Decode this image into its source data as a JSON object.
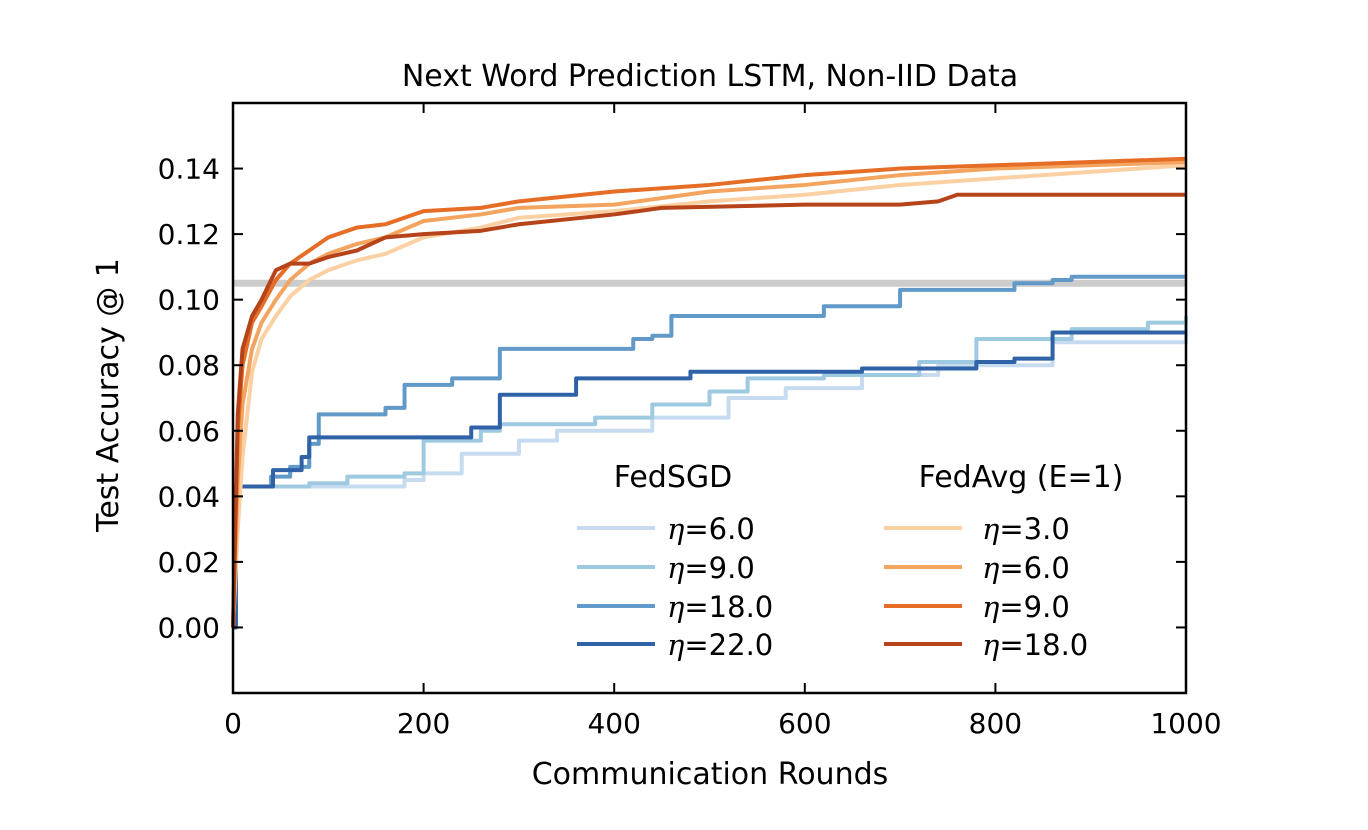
{
  "chart_data": {
    "type": "line",
    "title": "Next Word Prediction LSTM, Non-IID Data",
    "xlabel": "Communication Rounds",
    "ylabel": "Test Accuracy @ 1",
    "xlim": [
      0,
      1000
    ],
    "ylim": [
      -0.02,
      0.16
    ],
    "xticks": [
      0,
      200,
      400,
      600,
      800,
      1000
    ],
    "xtick_labels": [
      "0",
      "200",
      "400",
      "600",
      "800",
      "1000"
    ],
    "yticks": [
      0.0,
      0.02,
      0.04,
      0.06,
      0.08,
      0.1,
      0.12,
      0.14
    ],
    "ytick_labels": [
      "0.00",
      "0.02",
      "0.04",
      "0.06",
      "0.08",
      "0.10",
      "0.12",
      "0.14"
    ],
    "grid": false,
    "legend": {
      "placement": "lower-right",
      "groups": [
        {
          "heading": "FedSGD",
          "entries": [
            "=6.0",
            "=9.0",
            "=18.0",
            "=22.0"
          ]
        },
        {
          "heading": "FedAvg (E=1)",
          "entries": [
            "=3.0",
            "=6.0",
            "=9.0",
            "=18.0"
          ]
        }
      ],
      "symbol": "η"
    },
    "reference_line": {
      "y": 0.105,
      "color": "#cccccc"
    },
    "series": [
      {
        "name": "η=6.0",
        "group": "FedSGD",
        "color": "#c6dbef",
        "step": true,
        "points": [
          [
            0,
            0.0
          ],
          [
            3,
            0.043
          ],
          [
            60,
            0.043
          ],
          [
            180,
            0.045
          ],
          [
            200,
            0.047
          ],
          [
            240,
            0.053
          ],
          [
            300,
            0.057
          ],
          [
            340,
            0.06
          ],
          [
            440,
            0.064
          ],
          [
            520,
            0.07
          ],
          [
            580,
            0.073
          ],
          [
            660,
            0.077
          ],
          [
            740,
            0.08
          ],
          [
            860,
            0.087
          ],
          [
            1000,
            0.093
          ]
        ]
      },
      {
        "name": "η=9.0",
        "group": "FedSGD",
        "color": "#9ecae1",
        "step": true,
        "points": [
          [
            0,
            0.0
          ],
          [
            3,
            0.043
          ],
          [
            80,
            0.044
          ],
          [
            120,
            0.046
          ],
          [
            180,
            0.047
          ],
          [
            200,
            0.057
          ],
          [
            260,
            0.06
          ],
          [
            280,
            0.062
          ],
          [
            340,
            0.062
          ],
          [
            380,
            0.064
          ],
          [
            440,
            0.068
          ],
          [
            500,
            0.072
          ],
          [
            540,
            0.076
          ],
          [
            620,
            0.077
          ],
          [
            720,
            0.081
          ],
          [
            780,
            0.088
          ],
          [
            880,
            0.091
          ],
          [
            960,
            0.093
          ],
          [
            1000,
            0.095
          ]
        ]
      },
      {
        "name": "η=18.0",
        "group": "FedSGD",
        "color": "#6199c8",
        "step": true,
        "points": [
          [
            0,
            0.0
          ],
          [
            3,
            0.043
          ],
          [
            40,
            0.046
          ],
          [
            60,
            0.049
          ],
          [
            80,
            0.056
          ],
          [
            90,
            0.065
          ],
          [
            160,
            0.067
          ],
          [
            180,
            0.074
          ],
          [
            230,
            0.076
          ],
          [
            280,
            0.085
          ],
          [
            420,
            0.088
          ],
          [
            440,
            0.089
          ],
          [
            460,
            0.095
          ],
          [
            580,
            0.095
          ],
          [
            600,
            0.095
          ],
          [
            620,
            0.098
          ],
          [
            700,
            0.103
          ],
          [
            800,
            0.103
          ],
          [
            820,
            0.105
          ],
          [
            860,
            0.106
          ],
          [
            880,
            0.107
          ],
          [
            1000,
            0.107
          ]
        ]
      },
      {
        "name": "η=22.0",
        "group": "FedSGD",
        "color": "#2f62a6",
        "step": true,
        "points": [
          [
            0,
            0.0
          ],
          [
            3,
            0.043
          ],
          [
            40,
            0.043
          ],
          [
            42,
            0.048
          ],
          [
            70,
            0.048
          ],
          [
            72,
            0.052
          ],
          [
            80,
            0.058
          ],
          [
            240,
            0.058
          ],
          [
            250,
            0.061
          ],
          [
            280,
            0.071
          ],
          [
            340,
            0.071
          ],
          [
            360,
            0.076
          ],
          [
            460,
            0.076
          ],
          [
            480,
            0.078
          ],
          [
            560,
            0.078
          ],
          [
            640,
            0.078
          ],
          [
            660,
            0.079
          ],
          [
            760,
            0.079
          ],
          [
            780,
            0.081
          ],
          [
            820,
            0.082
          ],
          [
            840,
            0.082
          ],
          [
            860,
            0.09
          ],
          [
            1000,
            0.09
          ]
        ]
      },
      {
        "name": "η=3.0",
        "group": "FedAvg (E=1)",
        "color": "#fbd0a2",
        "step": false,
        "points": [
          [
            0,
            0.0
          ],
          [
            5,
            0.03
          ],
          [
            10,
            0.052
          ],
          [
            20,
            0.078
          ],
          [
            30,
            0.088
          ],
          [
            45,
            0.095
          ],
          [
            60,
            0.101
          ],
          [
            80,
            0.106
          ],
          [
            100,
            0.109
          ],
          [
            130,
            0.112
          ],
          [
            160,
            0.114
          ],
          [
            200,
            0.119
          ],
          [
            260,
            0.122
          ],
          [
            300,
            0.125
          ],
          [
            400,
            0.127
          ],
          [
            500,
            0.13
          ],
          [
            600,
            0.132
          ],
          [
            700,
            0.135
          ],
          [
            800,
            0.137
          ],
          [
            900,
            0.139
          ],
          [
            1000,
            0.141
          ]
        ]
      },
      {
        "name": "η=6.0",
        "group": "FedAvg (E=1)",
        "color": "#f3a560",
        "step": false,
        "points": [
          [
            0,
            0.0
          ],
          [
            5,
            0.045
          ],
          [
            10,
            0.068
          ],
          [
            20,
            0.085
          ],
          [
            30,
            0.093
          ],
          [
            45,
            0.1
          ],
          [
            60,
            0.106
          ],
          [
            80,
            0.111
          ],
          [
            100,
            0.114
          ],
          [
            130,
            0.117
          ],
          [
            160,
            0.119
          ],
          [
            200,
            0.124
          ],
          [
            260,
            0.126
          ],
          [
            300,
            0.128
          ],
          [
            400,
            0.129
          ],
          [
            500,
            0.133
          ],
          [
            600,
            0.135
          ],
          [
            700,
            0.138
          ],
          [
            800,
            0.14
          ],
          [
            900,
            0.141
          ],
          [
            1000,
            0.142
          ]
        ]
      },
      {
        "name": "η=9.0",
        "group": "FedAvg (E=1)",
        "color": "#e66d25",
        "step": false,
        "points": [
          [
            0,
            0.0
          ],
          [
            5,
            0.06
          ],
          [
            10,
            0.08
          ],
          [
            20,
            0.093
          ],
          [
            30,
            0.098
          ],
          [
            45,
            0.106
          ],
          [
            60,
            0.111
          ],
          [
            80,
            0.115
          ],
          [
            100,
            0.119
          ],
          [
            130,
            0.122
          ],
          [
            160,
            0.123
          ],
          [
            200,
            0.127
          ],
          [
            260,
            0.128
          ],
          [
            300,
            0.13
          ],
          [
            400,
            0.133
          ],
          [
            500,
            0.135
          ],
          [
            600,
            0.138
          ],
          [
            700,
            0.14
          ],
          [
            800,
            0.141
          ],
          [
            900,
            0.142
          ],
          [
            1000,
            0.143
          ]
        ]
      },
      {
        "name": "η=18.0",
        "group": "FedAvg (E=1)",
        "color": "#b6431a",
        "step": false,
        "points": [
          [
            0,
            0.0
          ],
          [
            5,
            0.065
          ],
          [
            10,
            0.085
          ],
          [
            20,
            0.095
          ],
          [
            30,
            0.1
          ],
          [
            45,
            0.109
          ],
          [
            60,
            0.111
          ],
          [
            80,
            0.111
          ],
          [
            100,
            0.113
          ],
          [
            130,
            0.115
          ],
          [
            160,
            0.119
          ],
          [
            200,
            0.12
          ],
          [
            260,
            0.121
          ],
          [
            300,
            0.123
          ],
          [
            400,
            0.126
          ],
          [
            450,
            0.128
          ],
          [
            600,
            0.129
          ],
          [
            700,
            0.129
          ],
          [
            740,
            0.13
          ],
          [
            760,
            0.132
          ],
          [
            1000,
            0.132
          ]
        ]
      }
    ]
  }
}
